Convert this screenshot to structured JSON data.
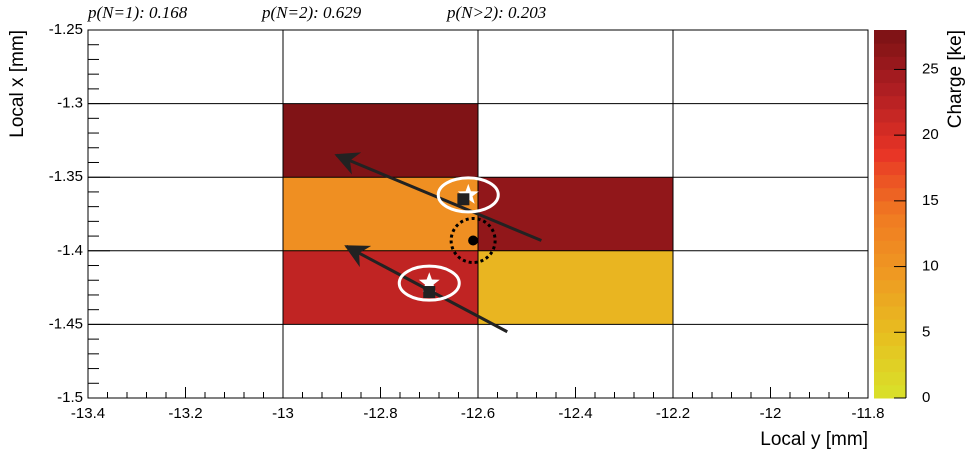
{
  "chart_data": {
    "type": "heatmap",
    "annotations": [
      "p(N=1): 0.168",
      "p(N=2): 0.629",
      "p(N>2): 0.203"
    ],
    "x_label": "Local y [mm]",
    "y_label": "Local x [mm]",
    "colorbar_label": "Charge [ke]",
    "xlim": [
      -13.4,
      -11.8
    ],
    "xticks": [
      -13.4,
      -13.2,
      -13,
      -12.8,
      -12.6,
      -12.4,
      -12.2,
      -12,
      -11.8
    ],
    "ylim": [
      -1.5,
      -1.25
    ],
    "yticks": [
      -1.5,
      -1.45,
      -1.4,
      -1.35,
      -1.3,
      -1.25
    ],
    "zlim": [
      0,
      28
    ],
    "zticks": [
      0,
      5,
      10,
      15,
      20,
      25
    ],
    "colorscale": [
      "#d8e22a",
      "#e6c020",
      "#ef9a22",
      "#f07a22",
      "#e83426",
      "#b01e22",
      "#7a1214"
    ],
    "xgrid": [
      -13,
      -12.6,
      -12.2
    ],
    "ygrid": [
      -1.45,
      -1.4,
      -1.35,
      -1.3
    ],
    "cells": [
      {
        "x": [
          -13,
          -12.6
        ],
        "y": [
          -1.35,
          -1.3
        ],
        "value": 27.5
      },
      {
        "x": [
          -13,
          -12.6
        ],
        "y": [
          -1.4,
          -1.35
        ],
        "value": 11
      },
      {
        "x": [
          -12.6,
          -12.2
        ],
        "y": [
          -1.4,
          -1.35
        ],
        "value": 26
      },
      {
        "x": [
          -13,
          -12.6
        ],
        "y": [
          -1.45,
          -1.4
        ],
        "value": 22
      },
      {
        "x": [
          -12.6,
          -12.2
        ],
        "y": [
          -1.45,
          -1.4
        ],
        "value": 6
      }
    ],
    "tracks": [
      {
        "x": [
          -12.47,
          -12.89
        ],
        "y": [
          -1.393,
          -1.335
        ]
      },
      {
        "x": [
          -12.54,
          -12.87
        ],
        "y": [
          -1.455,
          -1.397
        ]
      }
    ],
    "true_hits": {
      "x": [
        -12.62,
        -12.7
      ],
      "y": [
        -1.362,
        -1.422
      ]
    },
    "reco_hits": {
      "x": [
        -12.63,
        -12.7
      ],
      "y": [
        -1.365,
        -1.428
      ]
    },
    "centroid": {
      "x": -12.61,
      "y": -1.393
    }
  }
}
